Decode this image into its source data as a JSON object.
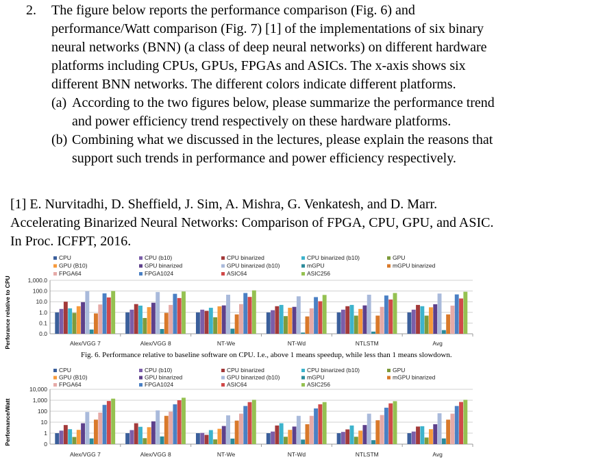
{
  "question": {
    "number": "2.",
    "lines": [
      "The figure below reports the performance comparison (Fig. 6) and",
      "performance/Watt comparison (Fig. 7) [1] of the implementations of six binary",
      "neural networks (BNN) (a class of deep neural networks) on different hardware",
      "platforms including CPUs, GPUs, FPGAs and ASICs. The x-axis shows six",
      "different BNN networks. The different colors indicate different platforms."
    ],
    "part_a": {
      "label": "(a)",
      "lines": [
        "According to the two figures below, please summarize the performance trend",
        "and power efficiency trend respectively on these hardware platforms."
      ]
    },
    "part_b": {
      "label": "(b)",
      "lines": [
        "Combining what we discussed in the lectures, please explain the reasons that",
        "support such trends in performance and power efficiency respectively."
      ]
    }
  },
  "reference": {
    "lines": [
      "[1] E. Nurvitadhi, D. Sheffield, J. Sim, A. Mishra, G. Venkatesh, and D. Marr.",
      "Accelerating Binarized Neural Networks: Comparison of FPGA, CPU, GPU, and ASIC.",
      "In Proc. ICFPT, 2016."
    ]
  },
  "chart_data": [
    {
      "type": "bar",
      "title": "",
      "caption": "Fig. 6. Performance relative to baseline software on CPU. I.e., above 1 means speedup, while less than 1 means slowdown.",
      "ylabel": "Perforance relative to CPU",
      "xlabel": "",
      "yscale": "log",
      "ylim": [
        0.01,
        1000
      ],
      "yticks": [
        0.01,
        0.1,
        1,
        10,
        100,
        1000
      ],
      "ytick_labels": [
        "0.0",
        "0.1",
        "1.0",
        "10.0",
        "100.0",
        "1,000.0"
      ],
      "grid": true,
      "legend": "top",
      "categories": [
        "Alex/VGG 7",
        "Alex/VGG 8",
        "NT-We",
        "NT-Wd",
        "NTLSTM",
        "Avg"
      ],
      "series": [
        {
          "name": "CPU",
          "color": "#3b5f9b",
          "values": [
            1,
            1,
            1,
            1,
            1,
            1
          ]
        },
        {
          "name": "CPU  (b10)",
          "color": "#7b5ea9",
          "values": [
            2.1,
            1.8,
            1.8,
            1.6,
            1.8,
            1.8
          ]
        },
        {
          "name": "CPU binarized",
          "color": "#a33a3a",
          "values": [
            10,
            6,
            1.4,
            3.8,
            3.8,
            5
          ]
        },
        {
          "name": "CPU binarized (b10)",
          "color": "#3db3cc",
          "values": [
            2.4,
            4.3,
            2.7,
            5,
            5,
            3.8
          ]
        },
        {
          "name": "GPU",
          "color": "#7e9b3c",
          "values": [
            0.9,
            0.3,
            0.35,
            0.45,
            0.5,
            0.5
          ]
        },
        {
          "name": "GPU (B10)",
          "color": "#f79a3b",
          "values": [
            3.8,
            3.1,
            3.7,
            2.7,
            2.1,
            3
          ]
        },
        {
          "name": "GPU binarized",
          "color": "#5d408b",
          "values": [
            9,
            8,
            4.5,
            3.3,
            4.5,
            5.8
          ]
        },
        {
          "name": "GPU binarized (b10)",
          "color": "#a9badb",
          "values": [
            95,
            80,
            45,
            32,
            45,
            58
          ]
        },
        {
          "name": "mGPU",
          "color": "#2b8b9b",
          "values": [
            0.025,
            0.028,
            0.03,
            0.013,
            0.016,
            0.022
          ]
        },
        {
          "name": "mGPU binarized",
          "color": "#d9792b",
          "values": [
            0.8,
            0.9,
            0.65,
            0.42,
            0.5,
            0.65
          ]
        },
        {
          "name": "FPGA64",
          "color": "#e6aaa7",
          "values": [
            5.5,
            5,
            6,
            2.4,
            3.3,
            4.3
          ]
        },
        {
          "name": "FPGA1024",
          "color": "#4a80c4",
          "values": [
            60,
            55,
            65,
            27,
            38,
            48
          ]
        },
        {
          "name": "ASIC64",
          "color": "#d04949",
          "values": [
            25,
            22,
            28,
            11,
            16,
            20
          ]
        },
        {
          "name": "ASIC256",
          "color": "#95c151",
          "values": [
            100,
            90,
            115,
            43,
            65,
            85
          ]
        }
      ]
    },
    {
      "type": "bar",
      "title": "",
      "ylabel": "Perfomance/Watt",
      "xlabel": "",
      "yscale": "log",
      "ylim": [
        0.1,
        10000
      ],
      "yticks": [
        0.1,
        1,
        10,
        100,
        1000,
        10000
      ],
      "ytick_labels": [
        "0",
        "1",
        "10",
        "100",
        "1,000",
        "10,000"
      ],
      "grid": true,
      "legend": "top",
      "categories": [
        "Alex/VGG 7",
        "Alex/VGG 8",
        "NT-We",
        "NT-Wd",
        "NTLSTM",
        "Avg"
      ],
      "series": [
        {
          "name": "CPU",
          "color": "#3b5f9b",
          "values": [
            1,
            1,
            1,
            1,
            1,
            1
          ]
        },
        {
          "name": "CPU  (b10)",
          "color": "#7b5ea9",
          "values": [
            1.7,
            1.9,
            1.05,
            1.4,
            1.3,
            1.4
          ]
        },
        {
          "name": "CPU binarized",
          "color": "#a33a3a",
          "values": [
            5.5,
            8,
            0.7,
            5,
            2.2,
            4
          ]
        },
        {
          "name": "CPU binarized (b10)",
          "color": "#3db3cc",
          "values": [
            2.3,
            3.8,
            1.9,
            8,
            5,
            4.3
          ]
        },
        {
          "name": "GPU",
          "color": "#7e9b3c",
          "values": [
            0.45,
            0.35,
            0.27,
            0.47,
            0.47,
            0.4
          ]
        },
        {
          "name": "GPU (B10)",
          "color": "#f79a3b",
          "values": [
            2,
            3.5,
            2.5,
            2,
            1.7,
            2.3
          ]
        },
        {
          "name": "GPU binarized",
          "color": "#5d408b",
          "values": [
            8,
            12,
            4.5,
            4,
            5.5,
            6.5
          ]
        },
        {
          "name": "GPU binarized (b10)",
          "color": "#a9badb",
          "values": [
            85,
            120,
            42,
            38,
            60,
            65
          ]
        },
        {
          "name": "mGPU",
          "color": "#2b8b9b",
          "values": [
            0.33,
            0.5,
            0.32,
            0.26,
            0.23,
            0.33
          ]
        },
        {
          "name": "mGPU binarized",
          "color": "#d9792b",
          "values": [
            17,
            38,
            14,
            6.5,
            15,
            17
          ]
        },
        {
          "name": "FPGA64",
          "color": "#e6aaa7",
          "values": [
            75,
            90,
            60,
            38,
            45,
            60
          ]
        },
        {
          "name": "FPGA1024",
          "color": "#4a80c4",
          "values": [
            380,
            430,
            300,
            180,
            210,
            300
          ]
        },
        {
          "name": "ASIC64",
          "color": "#d04949",
          "values": [
            850,
            1000,
            680,
            430,
            520,
            700
          ]
        },
        {
          "name": "ASIC256",
          "color": "#95c151",
          "values": [
            1400,
            1700,
            1100,
            680,
            820,
            1100
          ]
        }
      ]
    }
  ]
}
